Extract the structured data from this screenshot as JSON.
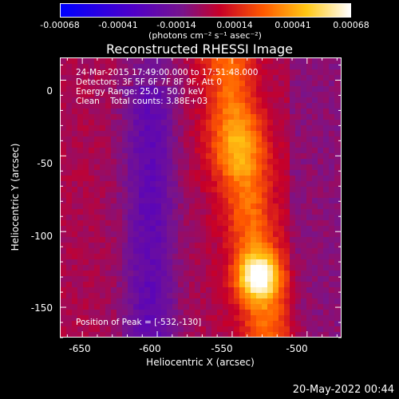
{
  "colorbar": {
    "ticks": [
      "-0.00068",
      "-0.00041",
      "-0.00014",
      "0.00014",
      "0.00041",
      "0.00068"
    ],
    "unit": "(photons cm⁻² s⁻¹ asec⁻²)"
  },
  "title": "Reconstructed RHESSI Image",
  "annotations": [
    "24-Mar-2015 17:49:00.000 to 17:51:48.000",
    "Detectors: 3F 5F 6F 7F 8F 9F, Att 0",
    "Energy Range: 25.0 - 50.0 keV",
    "Clean    Total counts: 3.88E+03"
  ],
  "peak_label": "Position of Peak = [-532,-130]",
  "axes": {
    "xlabel": "Heliocentric X (arcsec)",
    "ylabel": "Heliocentric Y (arcsec)",
    "xticks": [
      {
        "v": -650,
        "t": "-650"
      },
      {
        "v": -600,
        "t": "-600"
      },
      {
        "v": -550,
        "t": "-550"
      },
      {
        "v": -500,
        "t": "-500"
      }
    ],
    "yticks": [
      {
        "v": 0,
        "t": "0"
      },
      {
        "v": -50,
        "t": "-50"
      },
      {
        "v": -100,
        "t": "-100"
      },
      {
        "v": -150,
        "t": "-150"
      }
    ],
    "xlim": [
      -665,
      -477
    ],
    "ylim": [
      -170,
      15
    ]
  },
  "peak": {
    "x": -532,
    "y": -130
  },
  "date_stamp": "20-May-2022 00:44"
}
